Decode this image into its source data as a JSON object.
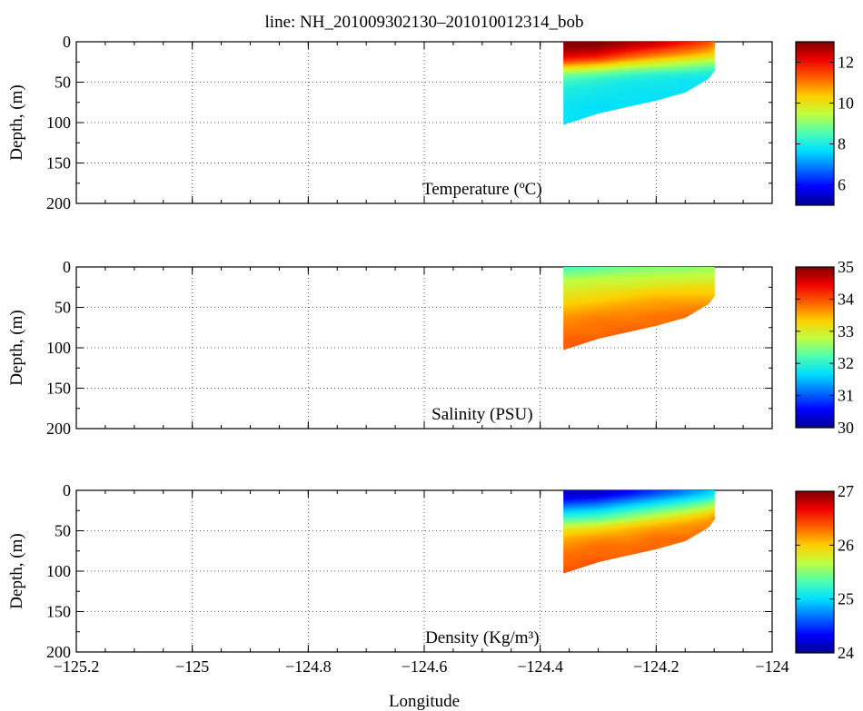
{
  "title": "line: NH_201009302130–201010012314_bob",
  "colormap": [
    "#00008f",
    "#0000ff",
    "#0070ff",
    "#00dfff",
    "#50ffaf",
    "#bfff40",
    "#ffcf00",
    "#ff6000",
    "#f00000",
    "#800000"
  ],
  "chart_data": [
    {
      "type": "heatmap",
      "name": "temperature",
      "annotation": "Temperature (ºC)",
      "ylabel": "Depth, (m)",
      "xlabel": "",
      "xlim": [
        -125.2,
        -124
      ],
      "ylim": [
        0,
        200
      ],
      "y_reversed": true,
      "x_ticks": [
        "−125.2",
        "−125",
        "−124.8",
        "−124.6",
        "−124.4",
        "−124.2",
        "−124"
      ],
      "y_ticks": [
        "0",
        "50",
        "100",
        "150",
        "200"
      ],
      "grid": true,
      "colorbar": {
        "range": [
          5,
          13
        ],
        "ticks": [
          "6",
          "8",
          "10",
          "12"
        ]
      },
      "section": {
        "x": [
          -124.36,
          -124.3,
          -124.25,
          -124.2,
          -124.15,
          -124.11,
          -124.1
        ],
        "bottom_depth": [
          102,
          88,
          80,
          72,
          62,
          45,
          35
        ],
        "depth": [
          0,
          5,
          10,
          15,
          20,
          25,
          30,
          35,
          40,
          45,
          50,
          60,
          70,
          80,
          90,
          100
        ],
        "values": [
          [
            13,
            13,
            12.8,
            12.5,
            12,
            11.5,
            11
          ],
          [
            12.9,
            12.9,
            12.5,
            12.2,
            11.6,
            11.2,
            10.8
          ],
          [
            12.7,
            12.6,
            12.1,
            11.6,
            11.2,
            10.8,
            10.5
          ],
          [
            12.4,
            12.2,
            11.6,
            11.2,
            10.8,
            10.4,
            10.2
          ],
          [
            12,
            11.7,
            11.1,
            10.6,
            10.2,
            9.9,
            9.7
          ],
          [
            11.4,
            11,
            10.4,
            10,
            9.6,
            9.3,
            9.2
          ],
          [
            10.5,
            10.1,
            9.6,
            9.3,
            9,
            8.8,
            8.7
          ],
          [
            9.6,
            9.3,
            8.9,
            8.7,
            8.5,
            8.3,
            8.3
          ],
          [
            9,
            8.7,
            8.4,
            8.2,
            8.1,
            8,
            8
          ],
          [
            8.6,
            8.3,
            8.1,
            8,
            7.9,
            7.9,
            7.9
          ],
          [
            8.3,
            8.1,
            7.9,
            7.9,
            7.8,
            7.8,
            7.8
          ],
          [
            8,
            7.9,
            7.8,
            7.8,
            7.8,
            7.8,
            7.8
          ],
          [
            7.9,
            7.8,
            7.8,
            7.7,
            7.7,
            7.7,
            7.7
          ],
          [
            7.8,
            7.7,
            7.7,
            7.7,
            7.7,
            7.7,
            7.7
          ],
          [
            7.8,
            7.7,
            7.7,
            7.7,
            7.7,
            7.7,
            7.7
          ],
          [
            7.7,
            7.7,
            7.7,
            7.7,
            7.7,
            7.7,
            7.7
          ]
        ]
      }
    },
    {
      "type": "heatmap",
      "name": "salinity",
      "annotation": "Salinity (PSU)",
      "ylabel": "Depth, (m)",
      "xlabel": "",
      "xlim": [
        -125.2,
        -124
      ],
      "ylim": [
        0,
        200
      ],
      "y_reversed": true,
      "x_ticks": [
        "−125.2",
        "−125",
        "−124.8",
        "−124.6",
        "−124.4",
        "−124.2",
        "−124"
      ],
      "y_ticks": [
        "0",
        "50",
        "100",
        "150",
        "200"
      ],
      "grid": true,
      "colorbar": {
        "range": [
          30,
          35
        ],
        "ticks": [
          "30",
          "31",
          "32",
          "33",
          "34",
          "35"
        ]
      },
      "section": {
        "x": [
          -124.36,
          -124.3,
          -124.25,
          -124.2,
          -124.15,
          -124.11,
          -124.1
        ],
        "bottom_depth": [
          102,
          88,
          80,
          72,
          62,
          45,
          35
        ],
        "depth": [
          0,
          5,
          10,
          15,
          20,
          25,
          30,
          35,
          40,
          45,
          50,
          60,
          70,
          80,
          90,
          100
        ],
        "values": [
          [
            32.1,
            32.3,
            32.4,
            32.5,
            32.5,
            32.6,
            32.6
          ],
          [
            32.3,
            32.4,
            32.5,
            32.6,
            32.6,
            32.7,
            32.7
          ],
          [
            32.5,
            32.6,
            32.7,
            32.7,
            32.8,
            32.8,
            32.8
          ],
          [
            32.7,
            32.8,
            32.8,
            32.9,
            32.9,
            32.9,
            32.9
          ],
          [
            32.8,
            32.9,
            32.9,
            33,
            33,
            33.1,
            33.1
          ],
          [
            32.9,
            33,
            33,
            33.1,
            33.2,
            33.2,
            33.2
          ],
          [
            33,
            33.1,
            33.2,
            33.3,
            33.3,
            33.3,
            33.3
          ],
          [
            33.1,
            33.2,
            33.3,
            33.4,
            33.4,
            33.4,
            33.4
          ],
          [
            33.2,
            33.3,
            33.4,
            33.5,
            33.5,
            33.5,
            33.5
          ],
          [
            33.3,
            33.4,
            33.5,
            33.6,
            33.6,
            33.6,
            33.6
          ],
          [
            33.4,
            33.5,
            33.6,
            33.6,
            33.7,
            33.7,
            33.7
          ],
          [
            33.6,
            33.7,
            33.7,
            33.8,
            33.8,
            33.8,
            33.8
          ],
          [
            33.7,
            33.8,
            33.8,
            33.8,
            33.8,
            33.8,
            33.8
          ],
          [
            33.8,
            33.8,
            33.9,
            33.9,
            33.9,
            33.9,
            33.9
          ],
          [
            33.9,
            33.9,
            33.9,
            33.9,
            33.9,
            33.9,
            33.9
          ],
          [
            33.9,
            33.9,
            33.9,
            33.9,
            33.9,
            33.9,
            33.9
          ]
        ]
      }
    },
    {
      "type": "heatmap",
      "name": "density",
      "annotation": "Density (Kg/m³)",
      "ylabel": "Depth, (m)",
      "xlabel": "Longitude",
      "xlim": [
        -125.2,
        -124
      ],
      "ylim": [
        0,
        200
      ],
      "y_reversed": true,
      "x_ticks": [
        "−125.2",
        "−125",
        "−124.8",
        "−124.6",
        "−124.4",
        "−124.2",
        "−124"
      ],
      "y_ticks": [
        "0",
        "50",
        "100",
        "150",
        "200"
      ],
      "grid": true,
      "colorbar": {
        "range": [
          24,
          27
        ],
        "ticks": [
          "24",
          "25",
          "26",
          "27"
        ]
      },
      "section": {
        "x": [
          -124.36,
          -124.3,
          -124.25,
          -124.2,
          -124.15,
          -124.11,
          -124.1
        ],
        "bottom_depth": [
          102,
          88,
          80,
          72,
          62,
          45,
          35
        ],
        "depth": [
          0,
          5,
          10,
          15,
          20,
          25,
          30,
          35,
          40,
          45,
          50,
          60,
          70,
          80,
          90,
          100
        ],
        "values": [
          [
            24.1,
            24.1,
            24.3,
            24.5,
            24.7,
            24.9,
            25
          ],
          [
            24.2,
            24.2,
            24.4,
            24.6,
            24.8,
            25,
            25.1
          ],
          [
            24.3,
            24.4,
            24.6,
            24.8,
            25,
            25.2,
            25.3
          ],
          [
            24.5,
            24.6,
            24.8,
            25,
            25.2,
            25.4,
            25.5
          ],
          [
            24.7,
            24.8,
            25,
            25.2,
            25.4,
            25.6,
            25.7
          ],
          [
            24.9,
            25,
            25.2,
            25.4,
            25.6,
            25.8,
            25.9
          ],
          [
            25.1,
            25.2,
            25.4,
            25.6,
            25.8,
            26,
            26.1
          ],
          [
            25.3,
            25.4,
            25.6,
            25.8,
            26,
            26.1,
            26.2
          ],
          [
            25.5,
            25.6,
            25.8,
            26,
            26.1,
            26.2,
            26.2
          ],
          [
            25.7,
            25.8,
            26,
            26.1,
            26.2,
            26.2,
            26.2
          ],
          [
            25.9,
            26,
            26.1,
            26.2,
            26.2,
            26.3,
            26.3
          ],
          [
            26.1,
            26.2,
            26.2,
            26.3,
            26.3,
            26.3,
            26.3
          ],
          [
            26.2,
            26.3,
            26.3,
            26.3,
            26.3,
            26.3,
            26.3
          ],
          [
            26.3,
            26.3,
            26.3,
            26.4,
            26.4,
            26.4,
            26.4
          ],
          [
            26.3,
            26.4,
            26.4,
            26.4,
            26.4,
            26.4,
            26.4
          ],
          [
            26.4,
            26.4,
            26.4,
            26.4,
            26.4,
            26.4,
            26.4
          ]
        ]
      }
    }
  ]
}
